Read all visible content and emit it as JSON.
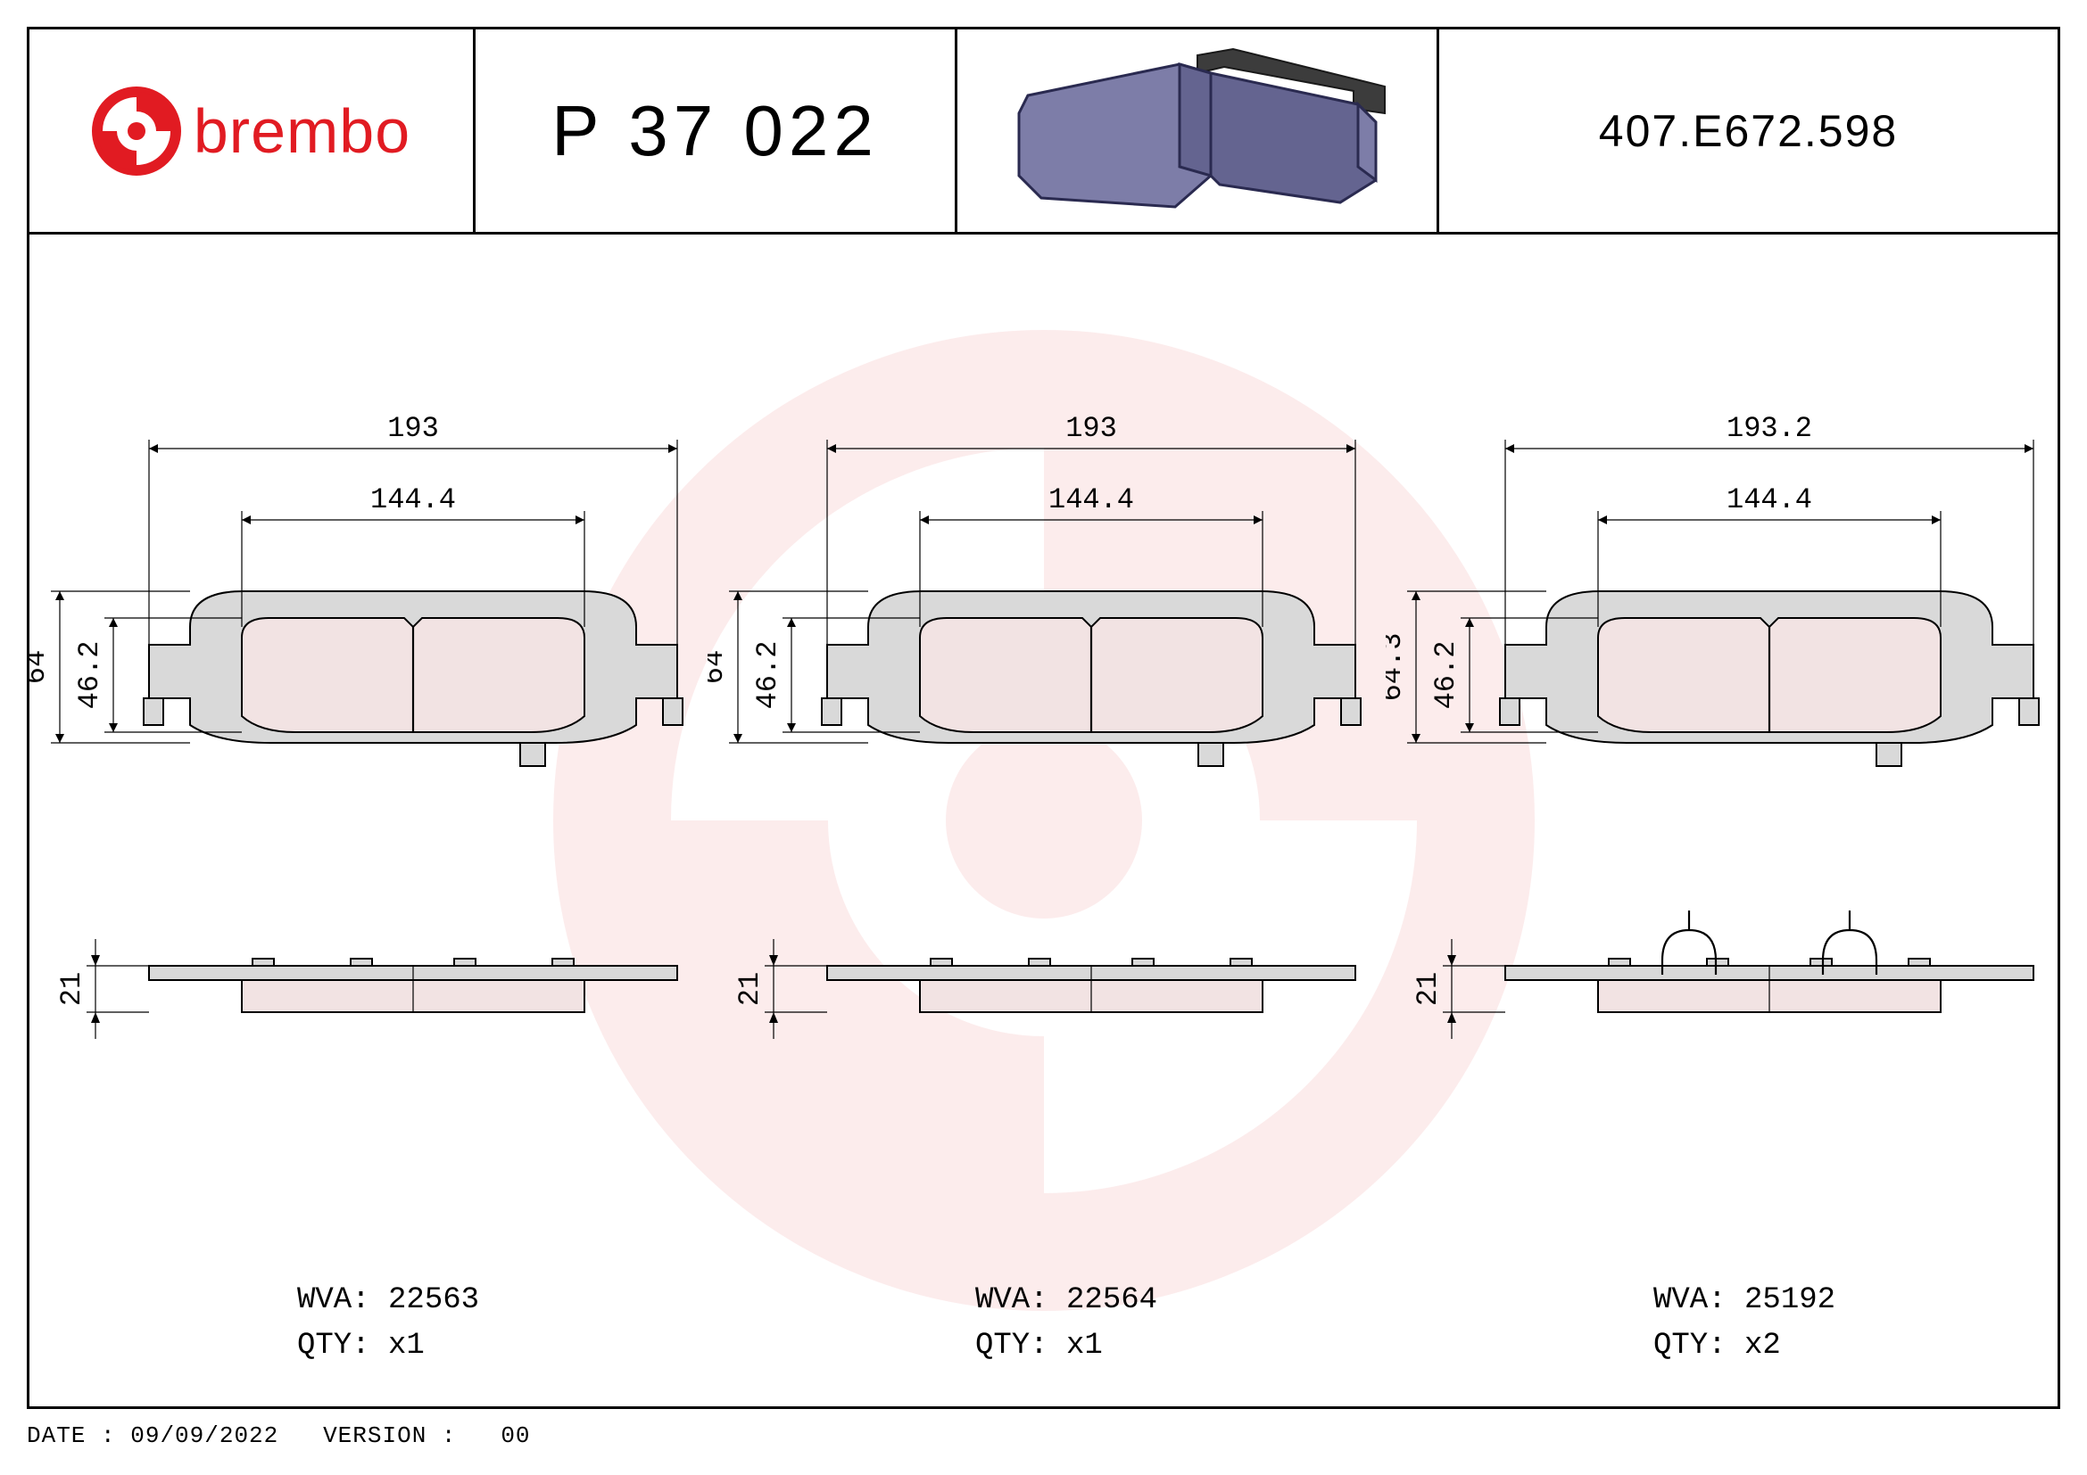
{
  "header": {
    "brand": "brembo",
    "brand_color": "#e11b22",
    "part_number": "P 37 022",
    "drawing_code": "407.E672.598"
  },
  "watermark": {
    "color": "#e11b22",
    "diameter": 1100
  },
  "views": [
    {
      "dims": {
        "outer_w": "193",
        "inner_w": "144.4",
        "outer_h": "64",
        "inner_h": "46.2",
        "thick": "21"
      },
      "wva": "22563",
      "qty": "x1",
      "has_clips": false
    },
    {
      "dims": {
        "outer_w": "193",
        "inner_w": "144.4",
        "outer_h": "64",
        "inner_h": "46.2",
        "thick": "21"
      },
      "wva": "22564",
      "qty": "x1",
      "has_clips": false
    },
    {
      "dims": {
        "outer_w": "193.2",
        "inner_w": "144.4",
        "outer_h": "64.3",
        "inner_h": "46.2",
        "thick": "21"
      },
      "wva": "25192",
      "qty": "x2",
      "has_clips": true
    }
  ],
  "labels": {
    "wva": "WVA:",
    "qty": "QTY:"
  },
  "footer": {
    "date_label": "DATE :",
    "date": "09/09/2022",
    "version_label": "VERSION :",
    "version": "00"
  },
  "colors": {
    "pad_fill": "#f2e3e3",
    "plate_fill": "#d9d9d9",
    "line": "#000000",
    "render_front": "#7d7da8",
    "render_back": "#3c3c3c"
  }
}
